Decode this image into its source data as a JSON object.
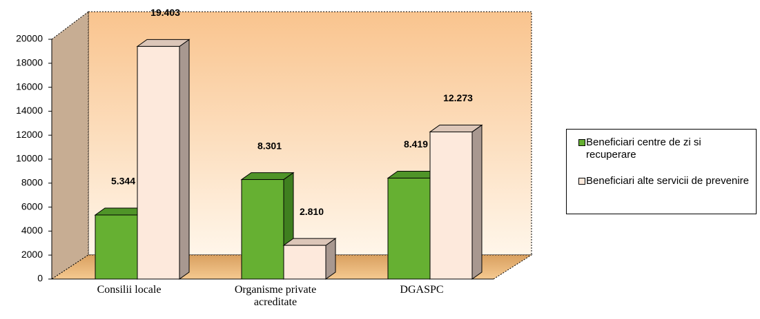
{
  "chart_data": {
    "type": "bar",
    "categories": [
      "Consilii locale",
      "Organisme private acreditate",
      "DGASPC"
    ],
    "series": [
      {
        "name": "Beneficiari centre de zi si recuperare",
        "color": "#66b032",
        "values": [
          5344,
          8301,
          8419
        ],
        "value_labels": [
          "5.344",
          "8.301",
          "8.419"
        ]
      },
      {
        "name": "Beneficiari alte servicii de prevenire",
        "color": "#fde9dc",
        "values": [
          19403,
          2810,
          12273
        ],
        "value_labels": [
          "19.403",
          "2.810",
          "12.273"
        ]
      }
    ],
    "ylim": [
      0,
      20000
    ],
    "yticks": [
      0,
      2000,
      4000,
      6000,
      8000,
      10000,
      12000,
      14000,
      16000,
      18000,
      20000
    ],
    "legend": "right"
  }
}
